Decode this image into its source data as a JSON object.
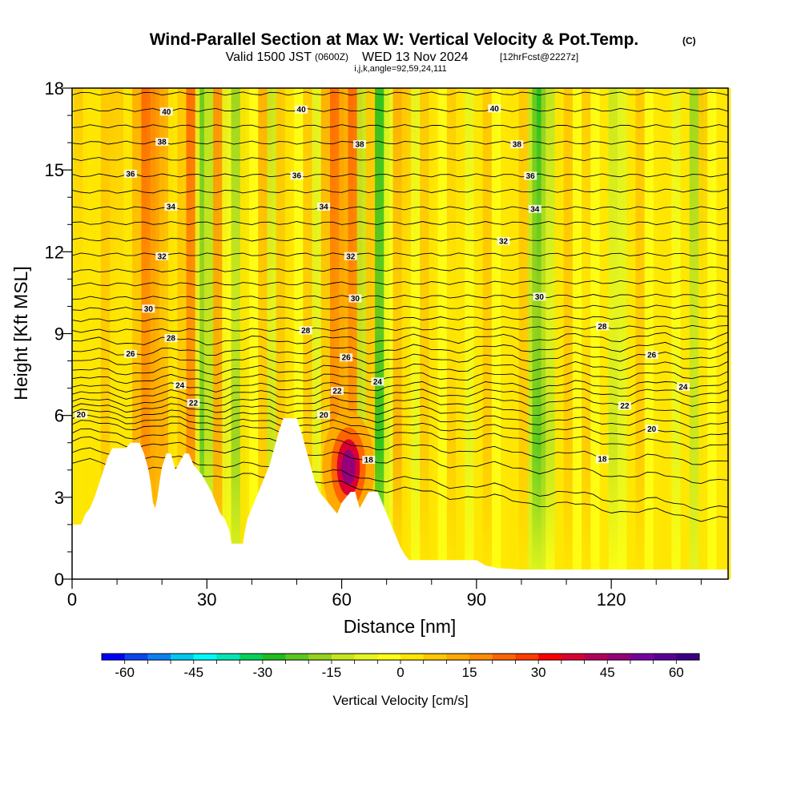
{
  "header": {
    "title": "Wind-Parallel Section at Max W: Vertical Velocity & Pot.Temp.",
    "copyright": "(C)",
    "valid_a": "Valid 1500 JST",
    "valid_z": "(0600Z)",
    "valid_b": "WED 13 Nov 2024",
    "forecast": "[12hrFcst@2227z]",
    "indices": "i,j,k,angle=92,59,24,111"
  },
  "chart_data": {
    "type": "heatmap",
    "xlabel": "Distance [nm]",
    "ylabel": "Height [Kft MSL]",
    "xlim": [
      0,
      146
    ],
    "ylim": [
      0,
      18
    ],
    "xticks": [
      0,
      30,
      60,
      90,
      120
    ],
    "yticks": [
      0,
      3,
      6,
      9,
      12,
      15,
      18
    ],
    "xminor": [
      10,
      20,
      40,
      50,
      70,
      80,
      100,
      110,
      130,
      140
    ],
    "colorbar": {
      "label": "Vertical Velocity [cm/s]",
      "min": -65,
      "max": 65,
      "step": 5,
      "ticks": [
        -60,
        -45,
        -30,
        -15,
        0,
        15,
        30,
        45,
        60
      ],
      "colors": [
        "#0000ff",
        "#0a46f0",
        "#0a80f5",
        "#00c8f0",
        "#00fafa",
        "#00e6b4",
        "#00d25a",
        "#1ebe1e",
        "#5ac81e",
        "#96d21e",
        "#c8e61e",
        "#e6f51e",
        "#ffff14",
        "#ffe600",
        "#ffc800",
        "#ffaa00",
        "#ff8c00",
        "#ff6400",
        "#ff3c00",
        "#ff0000",
        "#dc0032",
        "#b4005a",
        "#960078",
        "#7800a0",
        "#5a0096",
        "#3c0082"
      ]
    },
    "columns": [
      {
        "x": 2,
        "w": 5
      },
      {
        "x": 4,
        "w": 4
      },
      {
        "x": 6,
        "w": 2
      },
      {
        "x": 8,
        "w": 8
      },
      {
        "x": 10,
        "w": 5
      },
      {
        "x": 13,
        "w": 2
      },
      {
        "x": 15,
        "w": 13
      },
      {
        "x": 17,
        "w": 20
      },
      {
        "x": 19,
        "w": 15
      },
      {
        "x": 21,
        "w": 12
      },
      {
        "x": 23,
        "w": 4
      },
      {
        "x": 25,
        "w": 9
      },
      {
        "x": 27,
        "w": 20
      },
      {
        "x": 29,
        "w": -10
      },
      {
        "x": 30,
        "w": -25
      },
      {
        "x": 31,
        "w": -15
      },
      {
        "x": 33,
        "w": 16
      },
      {
        "x": 35,
        "w": -6
      },
      {
        "x": 37,
        "w": -18
      },
      {
        "x": 39,
        "w": 2
      },
      {
        "x": 41,
        "w": -3
      },
      {
        "x": 43,
        "w": 10
      },
      {
        "x": 45,
        "w": -12
      },
      {
        "x": 47,
        "w": 7
      },
      {
        "x": 49,
        "w": 4
      },
      {
        "x": 51,
        "w": -5
      },
      {
        "x": 53,
        "w": 7
      },
      {
        "x": 55,
        "w": -10
      },
      {
        "x": 57,
        "w": 10
      },
      {
        "x": 59,
        "w": 20
      },
      {
        "x": 61,
        "w": 14
      },
      {
        "x": 63,
        "w": 22
      },
      {
        "x": 65,
        "w": -14
      },
      {
        "x": 67,
        "w": 9
      },
      {
        "x": 69,
        "w": -30
      },
      {
        "x": 71,
        "w": -6
      },
      {
        "x": 73,
        "w": 12
      },
      {
        "x": 75,
        "w": 5
      },
      {
        "x": 77,
        "w": -6
      },
      {
        "x": 79,
        "w": 8
      },
      {
        "x": 81,
        "w": 4
      },
      {
        "x": 83,
        "w": -5
      },
      {
        "x": 85,
        "w": 6
      },
      {
        "x": 87,
        "w": 3
      },
      {
        "x": 89,
        "w": -6
      },
      {
        "x": 91,
        "w": 3
      },
      {
        "x": 93,
        "w": 7
      },
      {
        "x": 95,
        "w": -4
      },
      {
        "x": 97,
        "w": 4
      },
      {
        "x": 99,
        "w": 2
      },
      {
        "x": 101,
        "w": 8
      },
      {
        "x": 103,
        "w": -15
      },
      {
        "x": 104,
        "w": -24
      },
      {
        "x": 105,
        "w": -26
      },
      {
        "x": 106,
        "w": -20
      },
      {
        "x": 107,
        "w": -12
      },
      {
        "x": 109,
        "w": 3
      },
      {
        "x": 111,
        "w": 9
      },
      {
        "x": 113,
        "w": -4
      },
      {
        "x": 115,
        "w": 6
      },
      {
        "x": 117,
        "w": -2
      },
      {
        "x": 119,
        "w": 4
      },
      {
        "x": 121,
        "w": -12
      },
      {
        "x": 123,
        "w": -8
      },
      {
        "x": 125,
        "w": 3
      },
      {
        "x": 127,
        "w": 8
      },
      {
        "x": 129,
        "w": -3
      },
      {
        "x": 131,
        "w": 4
      },
      {
        "x": 133,
        "w": 2
      },
      {
        "x": 135,
        "w": -6
      },
      {
        "x": 137,
        "w": 3
      },
      {
        "x": 139,
        "w": -16
      },
      {
        "x": 141,
        "w": 5
      },
      {
        "x": 143,
        "w": -4
      },
      {
        "x": 145,
        "w": 2
      }
    ],
    "updraft_core": {
      "x": 61.5,
      "y": 4.1,
      "w": 55
    },
    "terrain": [
      [
        0,
        1
      ],
      [
        0,
        2
      ],
      [
        2,
        2
      ],
      [
        3,
        2.4
      ],
      [
        4,
        2.6
      ],
      [
        5,
        3
      ],
      [
        6,
        3.5
      ],
      [
        7,
        4
      ],
      [
        8,
        4.5
      ],
      [
        9,
        4.8
      ],
      [
        12,
        4.8
      ],
      [
        13,
        5
      ],
      [
        15,
        5
      ],
      [
        16,
        4.6
      ],
      [
        17,
        4
      ],
      [
        17.5,
        3.5
      ],
      [
        18,
        2.8
      ],
      [
        18.5,
        2.6
      ],
      [
        19,
        3
      ],
      [
        19.5,
        3.6
      ],
      [
        20,
        4.1
      ],
      [
        21,
        4.6
      ],
      [
        22,
        4.6
      ],
      [
        23,
        4
      ],
      [
        24,
        4.3
      ],
      [
        25,
        4.6
      ],
      [
        26,
        4.6
      ],
      [
        27,
        4.2
      ],
      [
        28,
        4
      ],
      [
        29,
        3.8
      ],
      [
        30,
        3.5
      ],
      [
        31,
        3.2
      ],
      [
        32,
        2.8
      ],
      [
        33,
        2.4
      ],
      [
        34,
        2.2
      ],
      [
        35,
        1.8
      ],
      [
        35.5,
        1.3
      ],
      [
        38,
        1.3
      ],
      [
        38.5,
        1.8
      ],
      [
        39,
        2.2
      ],
      [
        40,
        2.6
      ],
      [
        41,
        3
      ],
      [
        42,
        3.4
      ],
      [
        43,
        3.8
      ],
      [
        44,
        4.2
      ],
      [
        45,
        4.8
      ],
      [
        46,
        5.4
      ],
      [
        47,
        5.9
      ],
      [
        50,
        5.9
      ],
      [
        51,
        5.4
      ],
      [
        52,
        4.8
      ],
      [
        53,
        4.2
      ],
      [
        54,
        3.6
      ],
      [
        55,
        3.2
      ],
      [
        56,
        3
      ],
      [
        57,
        2.8
      ],
      [
        58,
        2.6
      ],
      [
        59,
        2.4
      ],
      [
        60,
        2.8
      ],
      [
        61,
        3
      ],
      [
        62,
        3.2
      ],
      [
        63,
        3.2
      ],
      [
        64,
        2.6
      ],
      [
        65,
        2.9
      ],
      [
        66,
        3.2
      ],
      [
        68,
        3.2
      ],
      [
        69,
        2.8
      ],
      [
        70,
        2.4
      ],
      [
        71,
        2
      ],
      [
        72,
        1.6
      ],
      [
        73,
        1.2
      ],
      [
        74,
        0.9
      ],
      [
        75,
        0.7
      ],
      [
        78,
        0.7
      ],
      [
        90,
        0.7
      ],
      [
        92,
        0.5
      ],
      [
        95,
        0.4
      ],
      [
        100,
        0.35
      ],
      [
        146,
        0.35
      ],
      [
        146,
        0
      ],
      [
        0,
        0
      ]
    ],
    "isentropes": [
      {
        "y0": 4.3,
        "y1": 2.2,
        "labels": []
      },
      {
        "y0": 4.7,
        "y1": 2.6,
        "labels": []
      },
      {
        "y0": 5.1,
        "y1": 3.6,
        "labels": [
          {
            "text": "18",
            "x": 66
          }
        ]
      },
      {
        "y0": 5.4,
        "y1": 4.3,
        "labels": [
          {
            "text": "18",
            "x": 118
          }
        ]
      },
      {
        "y0": 5.7,
        "y1": 4.9,
        "labels": []
      },
      {
        "y0": 5.9,
        "y1": 5.3,
        "labels": [
          {
            "text": "20",
            "x": 2
          },
          {
            "text": "20",
            "x": 129
          }
        ]
      },
      {
        "y0": 6.1,
        "y1": 5.7,
        "labels": [
          {
            "text": "20",
            "x": 56
          }
        ]
      },
      {
        "y0": 6.3,
        "y1": 6.1,
        "labels": []
      },
      {
        "y0": 6.5,
        "y1": 6.5,
        "labels": [
          {
            "text": "22",
            "x": 27
          },
          {
            "text": "22",
            "x": 123
          }
        ]
      },
      {
        "y0": 6.75,
        "y1": 6.85,
        "labels": [
          {
            "text": "22",
            "x": 59
          }
        ]
      },
      {
        "y0": 7.0,
        "y1": 7.15,
        "labels": [
          {
            "text": "24",
            "x": 24
          },
          {
            "text": "24",
            "x": 136
          }
        ]
      },
      {
        "y0": 7.3,
        "y1": 7.5,
        "labels": [
          {
            "text": "24",
            "x": 68
          }
        ]
      },
      {
        "y0": 7.6,
        "y1": 7.85,
        "labels": []
      },
      {
        "y0": 7.95,
        "y1": 8.2,
        "labels": [
          {
            "text": "26",
            "x": 61
          },
          {
            "text": "26",
            "x": 129
          }
        ]
      },
      {
        "y0": 8.3,
        "y1": 8.55,
        "labels": [
          {
            "text": "26",
            "x": 13
          }
        ]
      },
      {
        "y0": 8.7,
        "y1": 8.9,
        "labels": [
          {
            "text": "28",
            "x": 22
          }
        ]
      },
      {
        "y0": 9.1,
        "y1": 9.25,
        "labels": [
          {
            "text": "28",
            "x": 52
          },
          {
            "text": "28",
            "x": 118
          }
        ]
      },
      {
        "y0": 9.5,
        "y1": 9.6,
        "labels": []
      },
      {
        "y0": 9.9,
        "y1": 10.0,
        "labels": [
          {
            "text": "30",
            "x": 17
          }
        ]
      },
      {
        "y0": 10.3,
        "y1": 10.4,
        "labels": [
          {
            "text": "30",
            "x": 63
          },
          {
            "text": "30",
            "x": 104
          }
        ]
      },
      {
        "y0": 10.8,
        "y1": 10.9,
        "labels": []
      },
      {
        "y0": 11.3,
        "y1": 11.4,
        "labels": []
      },
      {
        "y0": 11.9,
        "y1": 11.9,
        "labels": [
          {
            "text": "32",
            "x": 20
          },
          {
            "text": "32",
            "x": 62
          }
        ]
      },
      {
        "y0": 12.45,
        "y1": 12.45,
        "labels": [
          {
            "text": "32",
            "x": 96
          }
        ]
      },
      {
        "y0": 13.05,
        "y1": 13.05,
        "labels": []
      },
      {
        "y0": 13.6,
        "y1": 13.6,
        "labels": [
          {
            "text": "34",
            "x": 22
          },
          {
            "text": "34",
            "x": 56
          },
          {
            "text": "34",
            "x": 103
          }
        ]
      },
      {
        "y0": 14.2,
        "y1": 14.25,
        "labels": []
      },
      {
        "y0": 14.8,
        "y1": 14.8,
        "labels": [
          {
            "text": "36",
            "x": 13
          },
          {
            "text": "36",
            "x": 50
          },
          {
            "text": "36",
            "x": 102
          }
        ]
      },
      {
        "y0": 15.4,
        "y1": 15.4,
        "labels": []
      },
      {
        "y0": 16.0,
        "y1": 16.0,
        "labels": [
          {
            "text": "38",
            "x": 20
          },
          {
            "text": "38",
            "x": 64
          },
          {
            "text": "38",
            "x": 99
          }
        ]
      },
      {
        "y0": 16.6,
        "y1": 16.6,
        "labels": []
      },
      {
        "y0": 17.2,
        "y1": 17.2,
        "labels": [
          {
            "text": "40",
            "x": 21
          },
          {
            "text": "40",
            "x": 51
          },
          {
            "text": "40",
            "x": 94
          }
        ]
      },
      {
        "y0": 17.8,
        "y1": 17.8,
        "labels": []
      }
    ]
  }
}
